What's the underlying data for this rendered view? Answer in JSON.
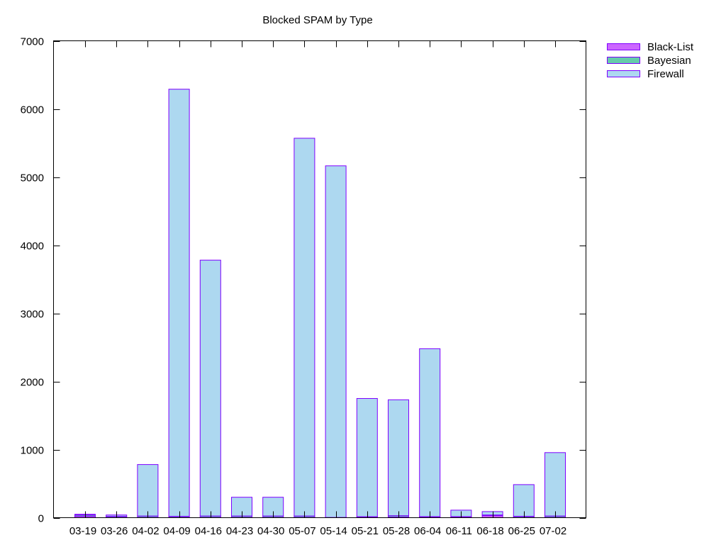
{
  "chart_data": {
    "type": "bar",
    "stacked": true,
    "title": "Blocked SPAM by Type",
    "xlabel": "",
    "ylabel": "",
    "ylim": [
      0,
      7000
    ],
    "yticks": [
      0,
      1000,
      2000,
      3000,
      4000,
      5000,
      6000,
      7000
    ],
    "ytick_labels": [
      "0",
      "1000",
      "2000",
      "3000",
      "4000",
      "5000",
      "6000",
      "7000"
    ],
    "grid": false,
    "legend_position": "top-right outside",
    "categories": [
      "03-19",
      "03-26",
      "04-02",
      "04-09",
      "04-16",
      "04-23",
      "04-30",
      "05-07",
      "05-14",
      "05-21",
      "05-28",
      "06-04",
      "06-11",
      "06-18",
      "06-25",
      "07-02"
    ],
    "series": [
      {
        "name": "Black-List",
        "color": "#cc66ff",
        "values": [
          20,
          5,
          5,
          5,
          5,
          5,
          5,
          5,
          5,
          5,
          10,
          5,
          5,
          30,
          5,
          5
        ]
      },
      {
        "name": "Bayesian",
        "color": "#66ccaa",
        "values": [
          20,
          15,
          20,
          15,
          20,
          20,
          20,
          20,
          0,
          10,
          20,
          10,
          10,
          10,
          15,
          20
        ]
      },
      {
        "name": "Firewall",
        "color": "#add8f0",
        "values": [
          10,
          20,
          755,
          6270,
          3755,
          275,
          275,
          5545,
          5160,
          1735,
          1700,
          2465,
          95,
          50,
          465,
          930
        ]
      }
    ],
    "outline_color": "#7f00ff"
  }
}
